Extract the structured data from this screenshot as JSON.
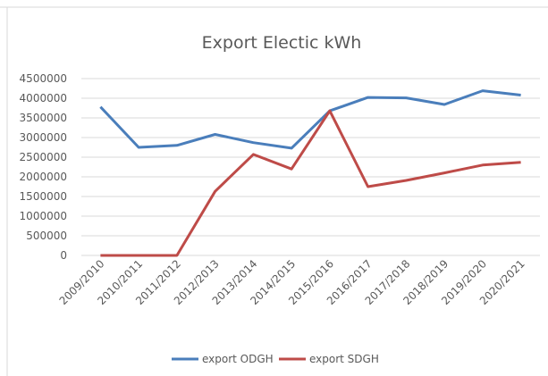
{
  "chart_data": {
    "type": "line",
    "title": "Export Electic kWh",
    "categories": [
      "2009/2010",
      "2010/2011",
      "2011/2012",
      "2012/2013",
      "2013/2014",
      "2014/2015",
      "2015/2016",
      "2016/2017",
      "2017/2018",
      "2018/2019",
      "2019/2020",
      "2020/2021"
    ],
    "series": [
      {
        "name": "export ODGH",
        "color": "#4a7ebb",
        "values": [
          3780000,
          2750000,
          2800000,
          3080000,
          2870000,
          2730000,
          3680000,
          4020000,
          4010000,
          3840000,
          4190000,
          4080000
        ]
      },
      {
        "name": "export SDGH",
        "color": "#be4b48",
        "values": [
          0,
          0,
          0,
          1630000,
          2570000,
          2200000,
          3680000,
          1750000,
          1910000,
          2100000,
          2300000,
          2370000
        ]
      }
    ],
    "ylim": [
      0,
      4500000
    ],
    "yticks": [
      0,
      500000,
      1000000,
      1500000,
      2000000,
      2500000,
      3000000,
      3500000,
      4000000,
      4500000
    ],
    "grid": true,
    "legend": "bottom"
  }
}
